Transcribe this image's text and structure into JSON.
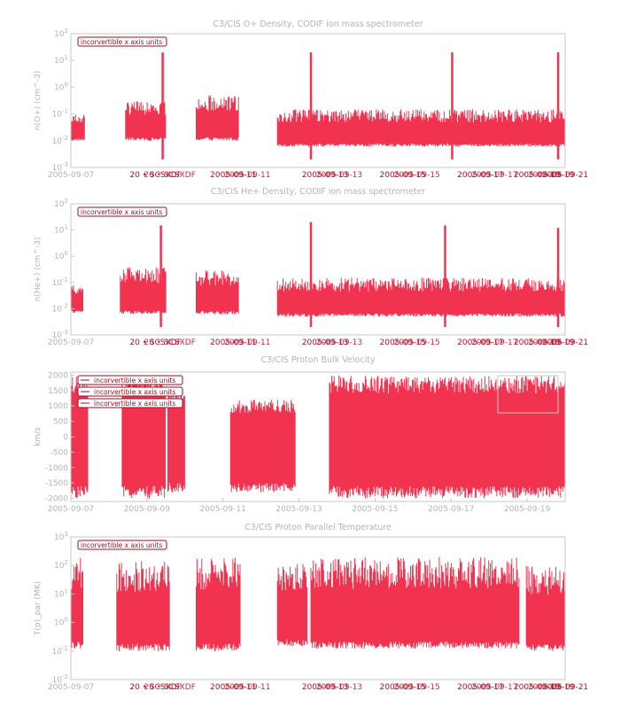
{
  "theme": {
    "series_color": "#f23350",
    "axis_color": "#b3b3b3",
    "warning_color": "#9a1020"
  },
  "chart_data": [
    {
      "type": "line",
      "title": "C3/CIS  O+ Density, CODIF ion mass spectrometer",
      "ylabel": "n(O+) (cm^-3)",
      "yscale": "log",
      "ylim": [
        0.001,
        100
      ],
      "yticks": [
        "10^-3",
        "10^-2",
        "10^-1",
        "10^0",
        "10^1",
        "10^2"
      ],
      "xlim": [
        "2005-09-07",
        "2005-09-21"
      ],
      "xticks": [
        "2005-09-07",
        "2005-09-21"
      ],
      "xticks_overlapping": [
        "20 • SCSXDF",
        "2005-09-11",
        "2005-09-13",
        "2005-09-15",
        "2005-09-17",
        "2005-09-19"
      ],
      "badges": [
        "incorvertible x axis units"
      ],
      "series": [
        {
          "start": "2005-09-07",
          "segments": [
            {
              "x": [
                0.0,
                0.4
              ],
              "base": 0.01,
              "top": 0.1
            },
            {
              "x": [
                1.55,
                2.7
              ],
              "base": 0.01,
              "top": 0.3
            },
            {
              "x": [
                3.55,
                4.75
              ],
              "base": 0.01,
              "top": 0.5
            },
            {
              "x": [
                5.85,
                14.0
              ],
              "base": 0.006,
              "top": 0.15
            }
          ],
          "spikes": [
            {
              "x": 2.6,
              "top": 20
            },
            {
              "x": 6.8,
              "top": 20
            },
            {
              "x": 10.8,
              "top": 20
            },
            {
              "x": 13.8,
              "top": 20
            }
          ]
        }
      ]
    },
    {
      "type": "line",
      "title": "C3/CIS  He+ Density, CODIF ion mass spectrometer",
      "ylabel": "n(He+) (cm^-3)",
      "yscale": "log",
      "ylim": [
        0.001,
        100
      ],
      "yticks": [
        "10^-3",
        "10^-2",
        "10^-1",
        "10^0",
        "10^1",
        "10^2"
      ],
      "xlim": [
        "2005-09-07",
        "2005-09-21"
      ],
      "xticks": [
        "2005-09-07",
        "2005-09-21"
      ],
      "xticks_overlapping": [
        "20 • SCSXDF",
        "2005-09-11",
        "2005-09-13",
        "2005-09-15",
        "2005-09-17",
        "2005-09-19"
      ],
      "badges": [
        "incorvertible x axis units"
      ],
      "series": [
        {
          "start": "2005-09-07",
          "segments": [
            {
              "x": [
                0.0,
                0.35
              ],
              "base": 0.007,
              "top": 0.08
            },
            {
              "x": [
                1.4,
                2.7
              ],
              "base": 0.006,
              "top": 0.4
            },
            {
              "x": [
                3.55,
                4.75
              ],
              "base": 0.006,
              "top": 0.3
            },
            {
              "x": [
                5.85,
                14.0
              ],
              "base": 0.005,
              "top": 0.15
            }
          ],
          "spikes": [
            {
              "x": 2.55,
              "top": 15
            },
            {
              "x": 6.8,
              "top": 20
            },
            {
              "x": 10.6,
              "top": 15
            },
            {
              "x": 13.8,
              "top": 12
            }
          ]
        }
      ]
    },
    {
      "type": "line",
      "title": "C3/CIS  Proton Bulk Velocity",
      "ylabel": "km/s",
      "yscale": "linear",
      "ylim": [
        -2100,
        2100
      ],
      "yticks": [
        "-2000",
        "-1500",
        "-1000",
        "-500",
        "0",
        "500",
        "1000",
        "1500",
        "2000"
      ],
      "xlim": [
        "2005-09-07",
        "2005-09-20"
      ],
      "xticks": [
        "2005-09-07",
        "2005-09-09",
        "2005-09-11",
        "2005-09-13",
        "2005-09-15",
        "2005-09-17",
        "2005-09-19"
      ],
      "badges": [
        "incorvertible x axis units",
        "incorvertible x axis units",
        "incorvertible x axis units"
      ],
      "series": [
        {
          "start": "2005-09-07",
          "segments": [
            {
              "x": [
                0.0,
                0.45
              ],
              "base": -2000,
              "top": 2000
            },
            {
              "x": [
                1.35,
                2.5
              ],
              "base": -2000,
              "top": 2000
            },
            {
              "x": [
                2.55,
                3.0
              ],
              "base": -1800,
              "top": 1500
            },
            {
              "x": [
                4.2,
                5.9
              ],
              "base": -1800,
              "top": 1200
            },
            {
              "x": [
                6.8,
                16.8
              ],
              "base": -2000,
              "top": 2000
            }
          ]
        }
      ]
    },
    {
      "type": "line",
      "title": "C3/CIS  Proton Parallel Temperature",
      "ylabel": "T(p)_par (MK)",
      "yscale": "log",
      "ylim": [
        0.01,
        1000
      ],
      "yticks": [
        "10^-2",
        "10^-1",
        "10^0",
        "10^1",
        "10^2",
        "10^3"
      ],
      "xlim": [
        "2005-09-07",
        "2005-09-21"
      ],
      "xticks": [
        "2005-09-07",
        "2005-09-21"
      ],
      "xticks_overlapping": [
        "20 • SCSXDF",
        "2005-09-11",
        "2005-09-13",
        "2005-09-15",
        "2005-09-17",
        "2005-09-19"
      ],
      "badges": [
        "incorvertible x axis units"
      ],
      "series": [
        {
          "start": "2005-09-07",
          "segments": [
            {
              "x": [
                0.0,
                0.35
              ],
              "base": 0.12,
              "top": 200
            },
            {
              "x": [
                1.3,
                2.8
              ],
              "base": 0.1,
              "top": 150
            },
            {
              "x": [
                3.55,
                4.8
              ],
              "base": 0.1,
              "top": 200
            },
            {
              "x": [
                5.85,
                6.7
              ],
              "base": 0.15,
              "top": 150
            },
            {
              "x": [
                6.8,
                12.7
              ],
              "base": 0.12,
              "top": 200
            },
            {
              "x": [
                12.9,
                14.0
              ],
              "base": 0.1,
              "top": 100
            }
          ]
        }
      ]
    }
  ]
}
